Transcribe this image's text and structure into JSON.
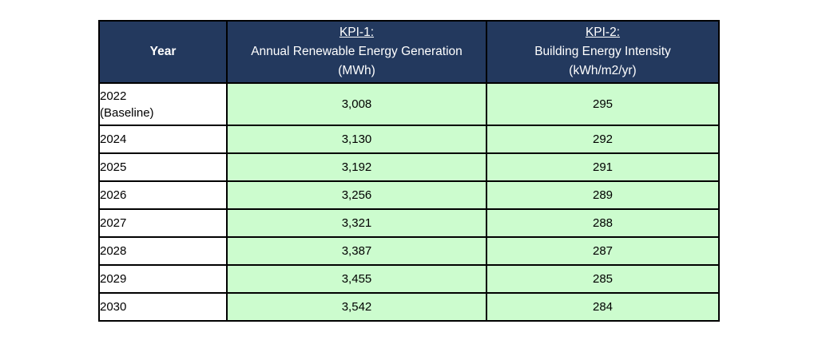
{
  "table": {
    "title": "KPI targets table",
    "colors": {
      "header_bg": "#23395E",
      "header_text": "#FFFFFF",
      "value_cell_bg": "#CCFCCE",
      "year_cell_bg": "#FFFFFF",
      "border": "#000000"
    },
    "header": {
      "year": "Year",
      "kpi1": {
        "title": "KPI-1:",
        "line2": "Annual Renewable Energy Generation",
        "line3": "(MWh)"
      },
      "kpi2": {
        "title": "KPI-2:",
        "line2": "Building Energy Intensity",
        "line3": "(kWh/m2/yr)"
      }
    },
    "rows": [
      {
        "year": "2022\n(Baseline)",
        "kpi1": "3,008",
        "kpi2": "295"
      },
      {
        "year": "2024",
        "kpi1": "3,130",
        "kpi2": "292"
      },
      {
        "year": "2025",
        "kpi1": "3,192",
        "kpi2": "291"
      },
      {
        "year": "2026",
        "kpi1": "3,256",
        "kpi2": "289"
      },
      {
        "year": "2027",
        "kpi1": "3,321",
        "kpi2": "288"
      },
      {
        "year": "2028",
        "kpi1": "3,387",
        "kpi2": "287"
      },
      {
        "year": "2029",
        "kpi1": "3,455",
        "kpi2": "285"
      },
      {
        "year": "2030",
        "kpi1": "3,542",
        "kpi2": "284"
      }
    ]
  }
}
